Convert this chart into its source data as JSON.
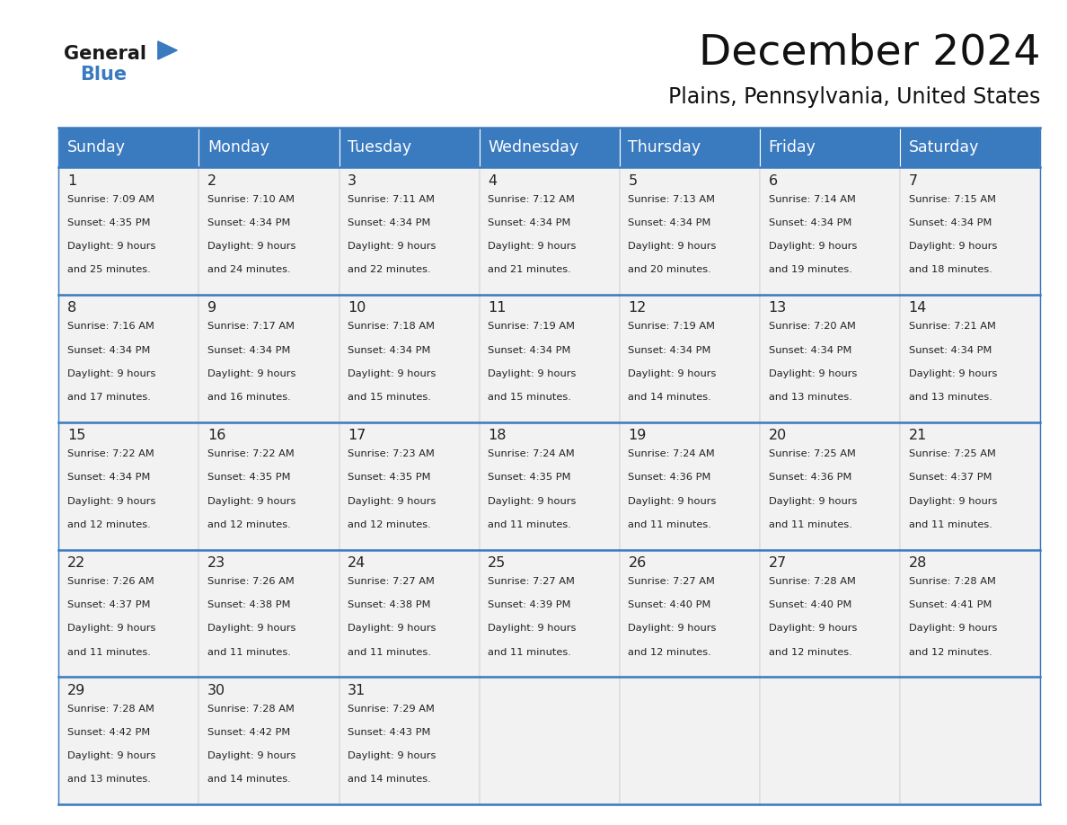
{
  "title": "December 2024",
  "subtitle": "Plains, Pennsylvania, United States",
  "header_bg_color": "#3a7abf",
  "header_text_color": "#ffffff",
  "cell_bg_color": "#f2f2f2",
  "border_color": "#3a7abf",
  "cell_border_color": "#aaaaaa",
  "text_color": "#222222",
  "days_of_week": [
    "Sunday",
    "Monday",
    "Tuesday",
    "Wednesday",
    "Thursday",
    "Friday",
    "Saturday"
  ],
  "weeks": [
    [
      {
        "day": "1",
        "sunrise": "7:09 AM",
        "sunset": "4:35 PM",
        "daylight_line1": "Daylight: 9 hours",
        "daylight_line2": "and 25 minutes."
      },
      {
        "day": "2",
        "sunrise": "7:10 AM",
        "sunset": "4:34 PM",
        "daylight_line1": "Daylight: 9 hours",
        "daylight_line2": "and 24 minutes."
      },
      {
        "day": "3",
        "sunrise": "7:11 AM",
        "sunset": "4:34 PM",
        "daylight_line1": "Daylight: 9 hours",
        "daylight_line2": "and 22 minutes."
      },
      {
        "day": "4",
        "sunrise": "7:12 AM",
        "sunset": "4:34 PM",
        "daylight_line1": "Daylight: 9 hours",
        "daylight_line2": "and 21 minutes."
      },
      {
        "day": "5",
        "sunrise": "7:13 AM",
        "sunset": "4:34 PM",
        "daylight_line1": "Daylight: 9 hours",
        "daylight_line2": "and 20 minutes."
      },
      {
        "day": "6",
        "sunrise": "7:14 AM",
        "sunset": "4:34 PM",
        "daylight_line1": "Daylight: 9 hours",
        "daylight_line2": "and 19 minutes."
      },
      {
        "day": "7",
        "sunrise": "7:15 AM",
        "sunset": "4:34 PM",
        "daylight_line1": "Daylight: 9 hours",
        "daylight_line2": "and 18 minutes."
      }
    ],
    [
      {
        "day": "8",
        "sunrise": "7:16 AM",
        "sunset": "4:34 PM",
        "daylight_line1": "Daylight: 9 hours",
        "daylight_line2": "and 17 minutes."
      },
      {
        "day": "9",
        "sunrise": "7:17 AM",
        "sunset": "4:34 PM",
        "daylight_line1": "Daylight: 9 hours",
        "daylight_line2": "and 16 minutes."
      },
      {
        "day": "10",
        "sunrise": "7:18 AM",
        "sunset": "4:34 PM",
        "daylight_line1": "Daylight: 9 hours",
        "daylight_line2": "and 15 minutes."
      },
      {
        "day": "11",
        "sunrise": "7:19 AM",
        "sunset": "4:34 PM",
        "daylight_line1": "Daylight: 9 hours",
        "daylight_line2": "and 15 minutes."
      },
      {
        "day": "12",
        "sunrise": "7:19 AM",
        "sunset": "4:34 PM",
        "daylight_line1": "Daylight: 9 hours",
        "daylight_line2": "and 14 minutes."
      },
      {
        "day": "13",
        "sunrise": "7:20 AM",
        "sunset": "4:34 PM",
        "daylight_line1": "Daylight: 9 hours",
        "daylight_line2": "and 13 minutes."
      },
      {
        "day": "14",
        "sunrise": "7:21 AM",
        "sunset": "4:34 PM",
        "daylight_line1": "Daylight: 9 hours",
        "daylight_line2": "and 13 minutes."
      }
    ],
    [
      {
        "day": "15",
        "sunrise": "7:22 AM",
        "sunset": "4:34 PM",
        "daylight_line1": "Daylight: 9 hours",
        "daylight_line2": "and 12 minutes."
      },
      {
        "day": "16",
        "sunrise": "7:22 AM",
        "sunset": "4:35 PM",
        "daylight_line1": "Daylight: 9 hours",
        "daylight_line2": "and 12 minutes."
      },
      {
        "day": "17",
        "sunrise": "7:23 AM",
        "sunset": "4:35 PM",
        "daylight_line1": "Daylight: 9 hours",
        "daylight_line2": "and 12 minutes."
      },
      {
        "day": "18",
        "sunrise": "7:24 AM",
        "sunset": "4:35 PM",
        "daylight_line1": "Daylight: 9 hours",
        "daylight_line2": "and 11 minutes."
      },
      {
        "day": "19",
        "sunrise": "7:24 AM",
        "sunset": "4:36 PM",
        "daylight_line1": "Daylight: 9 hours",
        "daylight_line2": "and 11 minutes."
      },
      {
        "day": "20",
        "sunrise": "7:25 AM",
        "sunset": "4:36 PM",
        "daylight_line1": "Daylight: 9 hours",
        "daylight_line2": "and 11 minutes."
      },
      {
        "day": "21",
        "sunrise": "7:25 AM",
        "sunset": "4:37 PM",
        "daylight_line1": "Daylight: 9 hours",
        "daylight_line2": "and 11 minutes."
      }
    ],
    [
      {
        "day": "22",
        "sunrise": "7:26 AM",
        "sunset": "4:37 PM",
        "daylight_line1": "Daylight: 9 hours",
        "daylight_line2": "and 11 minutes."
      },
      {
        "day": "23",
        "sunrise": "7:26 AM",
        "sunset": "4:38 PM",
        "daylight_line1": "Daylight: 9 hours",
        "daylight_line2": "and 11 minutes."
      },
      {
        "day": "24",
        "sunrise": "7:27 AM",
        "sunset": "4:38 PM",
        "daylight_line1": "Daylight: 9 hours",
        "daylight_line2": "and 11 minutes."
      },
      {
        "day": "25",
        "sunrise": "7:27 AM",
        "sunset": "4:39 PM",
        "daylight_line1": "Daylight: 9 hours",
        "daylight_line2": "and 11 minutes."
      },
      {
        "day": "26",
        "sunrise": "7:27 AM",
        "sunset": "4:40 PM",
        "daylight_line1": "Daylight: 9 hours",
        "daylight_line2": "and 12 minutes."
      },
      {
        "day": "27",
        "sunrise": "7:28 AM",
        "sunset": "4:40 PM",
        "daylight_line1": "Daylight: 9 hours",
        "daylight_line2": "and 12 minutes."
      },
      {
        "day": "28",
        "sunrise": "7:28 AM",
        "sunset": "4:41 PM",
        "daylight_line1": "Daylight: 9 hours",
        "daylight_line2": "and 12 minutes."
      }
    ],
    [
      {
        "day": "29",
        "sunrise": "7:28 AM",
        "sunset": "4:42 PM",
        "daylight_line1": "Daylight: 9 hours",
        "daylight_line2": "and 13 minutes."
      },
      {
        "day": "30",
        "sunrise": "7:28 AM",
        "sunset": "4:42 PM",
        "daylight_line1": "Daylight: 9 hours",
        "daylight_line2": "and 14 minutes."
      },
      {
        "day": "31",
        "sunrise": "7:29 AM",
        "sunset": "4:43 PM",
        "daylight_line1": "Daylight: 9 hours",
        "daylight_line2": "and 14 minutes."
      },
      null,
      null,
      null,
      null
    ]
  ]
}
